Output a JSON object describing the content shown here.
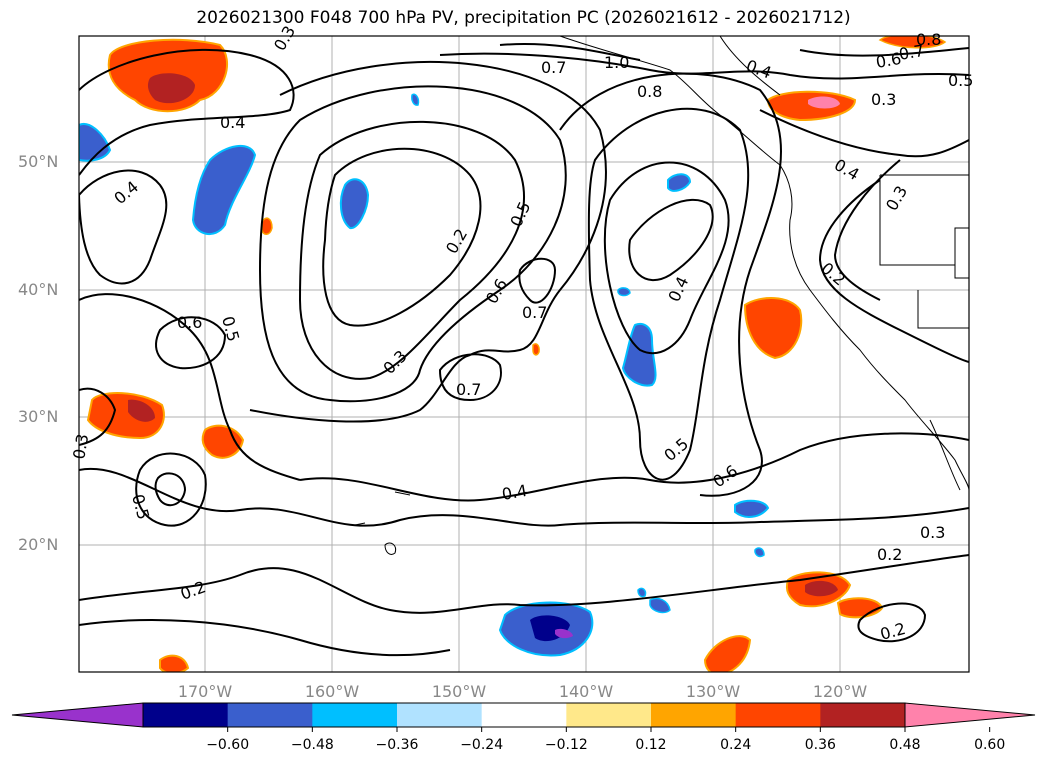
{
  "title": "2026021300 F048 700 hPa PV, precipitation PC (2026021612 - 2026021712)",
  "map": {
    "lat_labels": [
      "50°N",
      "40°N",
      "30°N",
      "20°N"
    ],
    "lon_labels": [
      "170°W",
      "160°W",
      "150°W",
      "140°W",
      "130°W",
      "120°W"
    ],
    "contour_labels": [
      "0.3",
      "0.4",
      "0.4",
      "0.5",
      "0.6",
      "0.2",
      "0.5",
      "0.6",
      "0.7",
      "0.3",
      "0.7",
      "0.7",
      "1.0",
      "0.8",
      "0.4",
      "0.3",
      "0.4",
      "0.3",
      "0.4",
      "0.2",
      "0.5",
      "0.6",
      "0.3",
      "0.2",
      "0.4",
      "0.3",
      "0.5",
      "0.2",
      "0.2",
      "0.7",
      "0.6",
      "0.8",
      "0.5"
    ],
    "colors": {
      "contour": "#000000",
      "grid": "#b0b0b0",
      "ocean": "#ffffff"
    }
  },
  "colorbar": {
    "ticks": [
      "−0.60",
      "−0.48",
      "−0.36",
      "−0.24",
      "−0.12",
      "0.12",
      "0.24",
      "0.36",
      "0.48",
      "0.60"
    ],
    "colors": [
      "#9932cc",
      "#00008b",
      "#3a5fcd",
      "#00bfff",
      "#b0e2ff",
      "#ffffff",
      "#ffe88a",
      "#ffa500",
      "#ff4500",
      "#b22222",
      "#ff82ab"
    ]
  }
}
